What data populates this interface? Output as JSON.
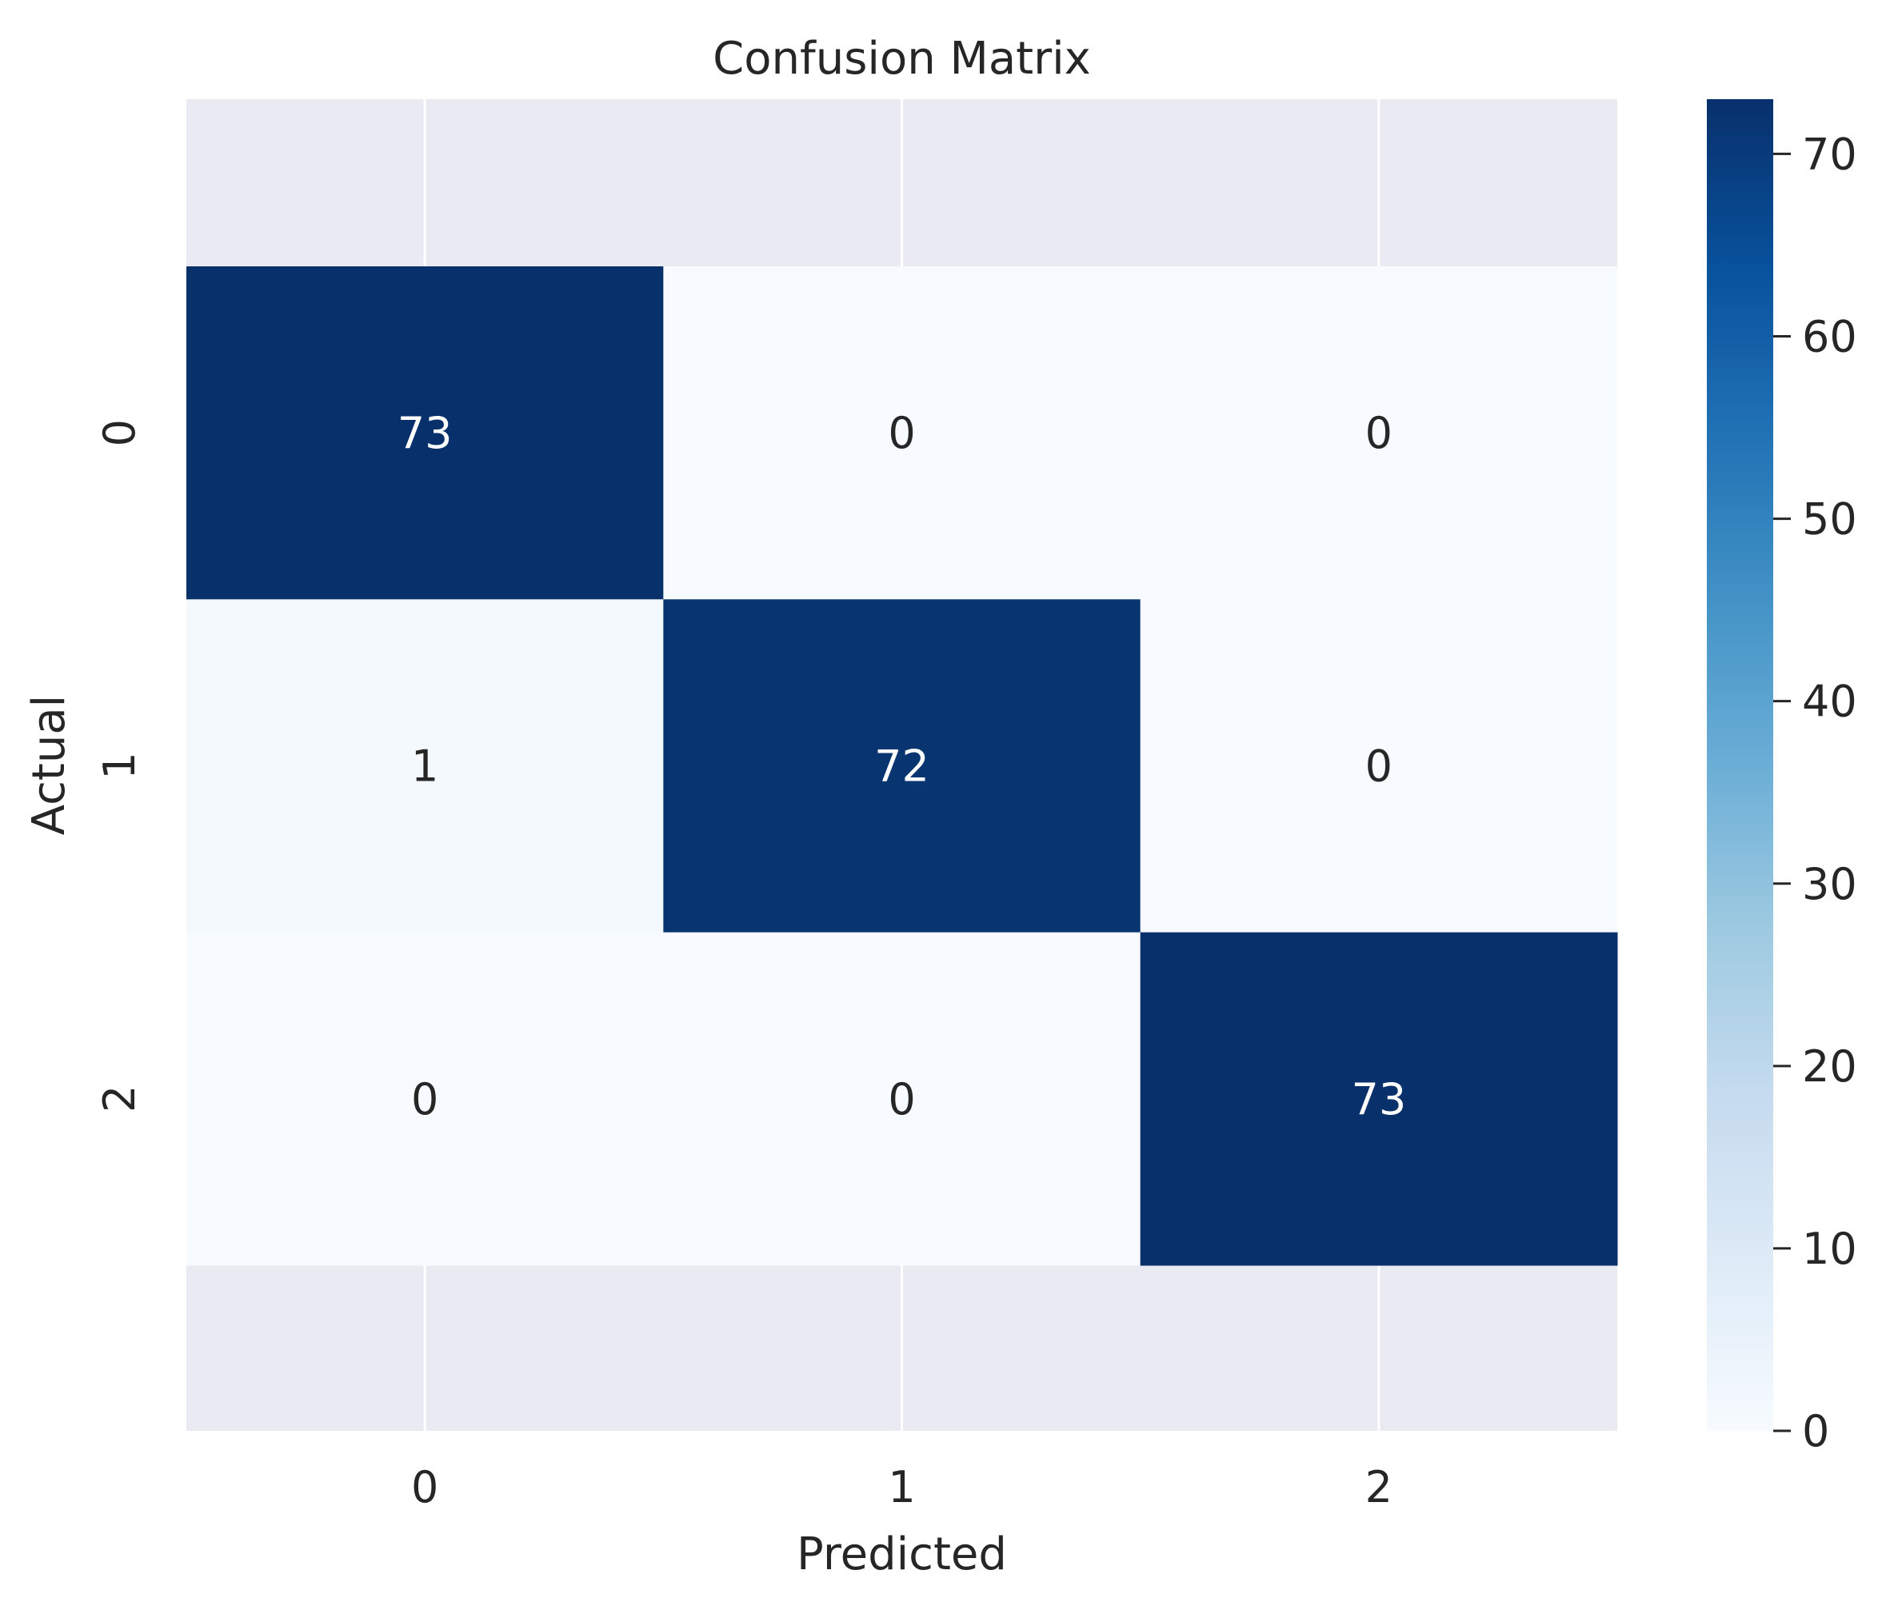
{
  "chart_data": {
    "type": "heatmap",
    "title": "Confusion Matrix",
    "xlabel": "Predicted",
    "ylabel": "Actual",
    "x_categories": [
      "0",
      "1",
      "2"
    ],
    "y_categories": [
      "0",
      "1",
      "2"
    ],
    "values": [
      [
        73,
        0,
        0
      ],
      [
        1,
        72,
        0
      ],
      [
        0,
        0,
        73
      ]
    ],
    "colormap": "Blues",
    "colorbar": {
      "vmin": 0,
      "vmax": 73,
      "ticks": [
        0,
        10,
        20,
        30,
        40,
        50,
        60,
        70
      ]
    },
    "grid": true
  },
  "colors": {
    "axes_background": "#eaeaf2",
    "grid_line": "#ffffff",
    "text": "#262626",
    "annotation_dark_bg_text": "#ffffff",
    "annotation_light_bg_text": "#262626"
  }
}
